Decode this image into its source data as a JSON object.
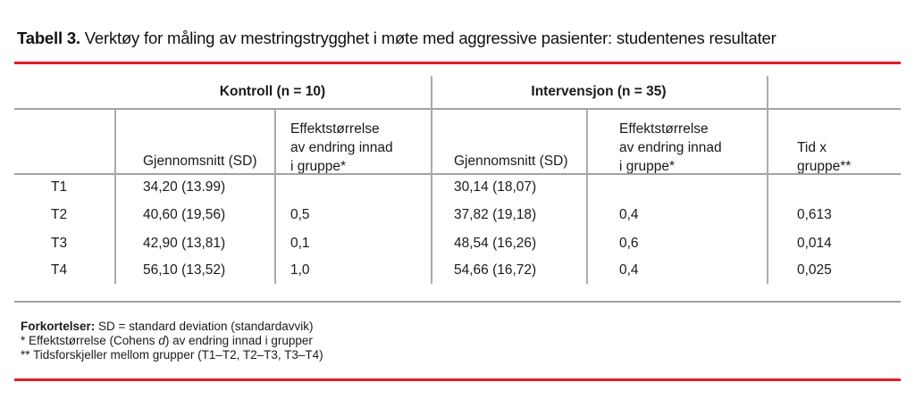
{
  "title": {
    "label": "Tabell 3.",
    "text": " Verktøy for måling av mestringstrygghet i møte med aggressive pasienter: studentenes resultater"
  },
  "table": {
    "group_headers": {
      "kontroll": "Kontroll (n = 10)",
      "intervensjon": "Intervensjon (n = 35)"
    },
    "column_headers": {
      "kontroll_mean": "Gjennomsnitt (SD)",
      "kontroll_effect": "Effektstørrelse\nav endring innad\ni gruppe*",
      "intervensjon_mean": "Gjennomsnitt (SD)",
      "intervensjon_effect": "Effektstørrelse\nav endring innad\ni gruppe*",
      "tid_x_gruppe": "Tid x\ngruppe**"
    },
    "rows": [
      {
        "label": "T1",
        "cells": [
          "34,20 (13.99)",
          "",
          "30,14 (18,07)",
          "",
          ""
        ]
      },
      {
        "label": "T2",
        "cells": [
          "40,60 (19,56)",
          "0,5",
          "37,82 (19,18)",
          "0,4",
          "0,613"
        ]
      },
      {
        "label": "T3",
        "cells": [
          "42,90 (13,81)",
          "0,1",
          "48,54 (16,26)",
          "0,6",
          "0,014"
        ]
      },
      {
        "label": "T4",
        "cells": [
          "56,10 (13,52)",
          "1,0",
          "54,66 (16,72)",
          "0,4",
          "0,025"
        ]
      }
    ]
  },
  "footnotes": {
    "abbrev_label": "Forkortelser:",
    "abbrev_text": " SD = standard deviation (standardavvik)",
    "star1_pre": "* Effektstørrelse (Cohens ",
    "star1_italic": "d",
    "star1_post": ") av endring innad i grupper",
    "star2": "** Tidsforskjeller mellom grupper (T1–T2, T2–T3, T3–T4)"
  },
  "colors": {
    "accent_red": "#e01e26",
    "line_gray": "#a2a2a2",
    "text": "#1a1a1a"
  }
}
